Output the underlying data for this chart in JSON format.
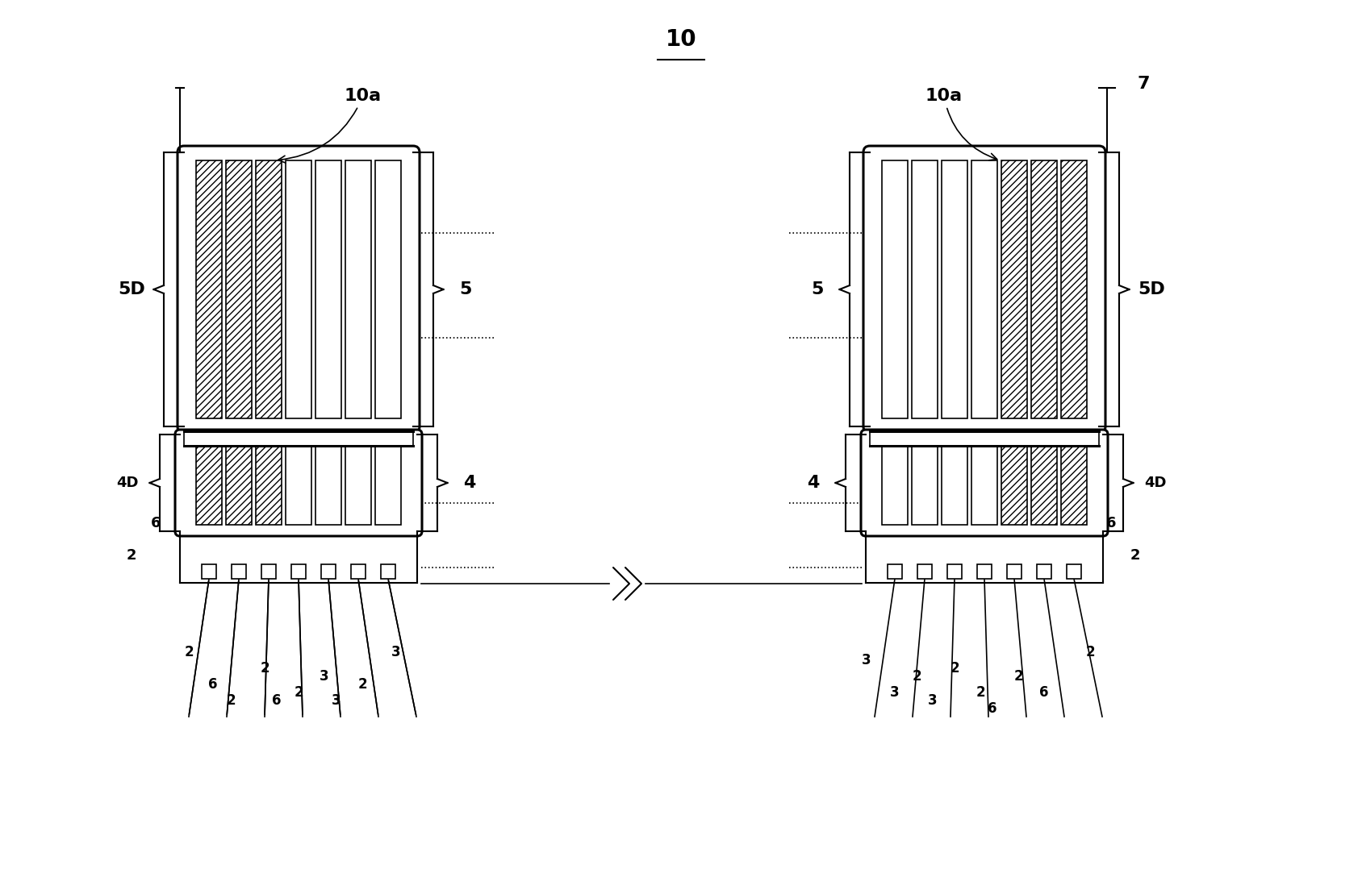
{
  "bg_color": "#ffffff",
  "line_color": "#000000",
  "hatch_color": "#000000",
  "fig_width": 16.88,
  "fig_height": 11.09,
  "label_10": "10",
  "label_10a": "10a",
  "label_7": "7",
  "label_5D_left": "5D",
  "label_5D_right": "5D",
  "label_5_left": "5",
  "label_5_right": "5",
  "label_4D_left": "4D",
  "label_4D_right": "4D",
  "label_4_left": "4",
  "label_4_right": "4",
  "label_6": "6",
  "label_2": "2",
  "label_3": "3"
}
